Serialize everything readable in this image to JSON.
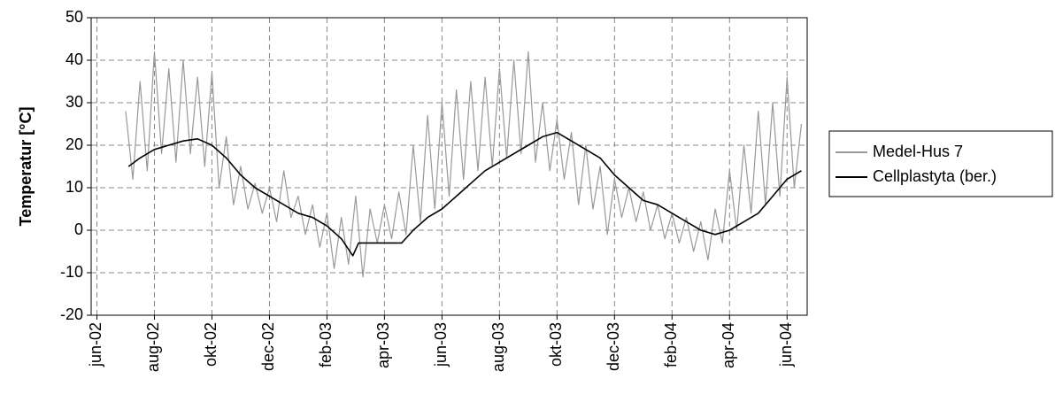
{
  "chart_data": {
    "type": "line",
    "y_label": "Temperatur [°C]",
    "xlim": [
      -0.2,
      24.7
    ],
    "xticks": [
      {
        "value": 0,
        "label": "jun-02"
      },
      {
        "value": 2,
        "label": "aug-02"
      },
      {
        "value": 4,
        "label": "okt-02"
      },
      {
        "value": 6,
        "label": "dec-02"
      },
      {
        "value": 8,
        "label": "feb-03"
      },
      {
        "value": 10,
        "label": "apr-03"
      },
      {
        "value": 12,
        "label": "jun-03"
      },
      {
        "value": 14,
        "label": "aug-03"
      },
      {
        "value": 16,
        "label": "okt-03"
      },
      {
        "value": 18,
        "label": "dec-03"
      },
      {
        "value": 20,
        "label": "feb-04"
      },
      {
        "value": 22,
        "label": "apr-04"
      },
      {
        "value": 24,
        "label": "jun-04"
      }
    ],
    "ylim": [
      -20,
      50
    ],
    "yticks": [
      -20,
      -10,
      0,
      10,
      20,
      30,
      40,
      50
    ],
    "grid": true,
    "legend": "right",
    "series": [
      {
        "name": "Medel-Hus 7",
        "color": "#999999",
        "x": [
          1.0,
          1.25,
          1.5,
          1.75,
          2.0,
          2.25,
          2.5,
          2.75,
          3.0,
          3.25,
          3.5,
          3.75,
          4.0,
          4.25,
          4.5,
          4.75,
          5.0,
          5.25,
          5.5,
          5.75,
          6.0,
          6.25,
          6.5,
          6.75,
          7.0,
          7.25,
          7.5,
          7.75,
          8.0,
          8.25,
          8.5,
          8.75,
          9.0,
          9.25,
          9.5,
          9.75,
          10.0,
          10.25,
          10.5,
          10.75,
          11.0,
          11.25,
          11.5,
          11.75,
          12.0,
          12.25,
          12.5,
          12.75,
          13.0,
          13.25,
          13.5,
          13.75,
          14.0,
          14.25,
          14.5,
          14.75,
          15.0,
          15.25,
          15.5,
          15.75,
          16.0,
          16.25,
          16.5,
          16.75,
          17.0,
          17.25,
          17.5,
          17.75,
          18.0,
          18.25,
          18.5,
          18.75,
          19.0,
          19.25,
          19.5,
          19.75,
          20.0,
          20.25,
          20.5,
          20.75,
          21.0,
          21.25,
          21.5,
          21.75,
          22.0,
          22.25,
          22.5,
          22.75,
          23.0,
          23.25,
          23.5,
          23.75,
          24.0,
          24.25,
          24.5
        ],
        "values": [
          28,
          12,
          35,
          14,
          42,
          18,
          38,
          16,
          40,
          18,
          36,
          15,
          37,
          10,
          22,
          6,
          15,
          5,
          11,
          4,
          10,
          2,
          14,
          3,
          8,
          -1,
          6,
          -4,
          4,
          -9,
          3,
          -8,
          8,
          -11,
          5,
          -3,
          6,
          -2,
          9,
          -1,
          20,
          2,
          27,
          5,
          30,
          8,
          33,
          12,
          35,
          14,
          36,
          15,
          38,
          17,
          40,
          18,
          42,
          16,
          30,
          14,
          26,
          12,
          23,
          6,
          20,
          5,
          15,
          -1,
          12,
          3,
          10,
          2,
          9,
          0,
          6,
          -2,
          4,
          -3,
          3,
          -5,
          2,
          -7,
          5,
          -3,
          14,
          0,
          20,
          4,
          28,
          6,
          30,
          8,
          36,
          10,
          25
        ]
      },
      {
        "name": "Cellplastyta (ber.)",
        "color": "#000000",
        "x": [
          1.1,
          1.5,
          2.0,
          2.5,
          3.0,
          3.5,
          4.0,
          4.5,
          5.0,
          5.5,
          6.0,
          6.5,
          7.0,
          7.5,
          8.0,
          8.5,
          8.9,
          9.1,
          10.0,
          10.6,
          11.0,
          11.5,
          12.0,
          12.5,
          13.0,
          13.5,
          14.0,
          14.5,
          15.0,
          15.5,
          16.0,
          16.5,
          17.0,
          17.5,
          18.0,
          18.5,
          19.0,
          19.5,
          20.0,
          20.5,
          21.0,
          21.5,
          22.0,
          22.5,
          23.0,
          23.5,
          24.0,
          24.5
        ],
        "values": [
          15,
          17,
          19,
          20,
          21,
          21.5,
          20,
          17,
          13,
          10,
          8,
          6,
          4,
          3,
          1,
          -2,
          -6,
          -3,
          -3,
          -3,
          0,
          3,
          5,
          8,
          11,
          14,
          16,
          18,
          20,
          22,
          23,
          21,
          19,
          17,
          13,
          10,
          7,
          6,
          4,
          2,
          0,
          -1,
          0,
          2,
          4,
          8,
          12,
          14
        ]
      }
    ]
  }
}
